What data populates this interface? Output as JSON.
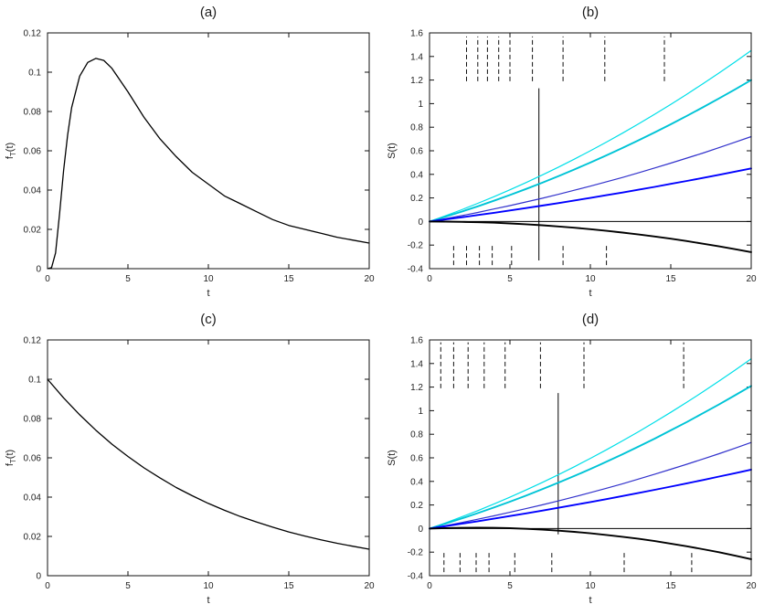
{
  "figure": {
    "background": "#ffffff"
  },
  "chart_data": [
    {
      "id": "a",
      "type": "line",
      "title": "(a)",
      "xlabel": "t",
      "ylabel": "f_T(t)",
      "xlim": [
        0,
        20
      ],
      "ylim": [
        0,
        0.12
      ],
      "xticks": [
        0,
        5,
        10,
        15,
        20
      ],
      "xtick_labels": [
        "0",
        "5",
        "10",
        "15",
        "20"
      ],
      "yticks": [
        0,
        0.02,
        0.04,
        0.06,
        0.08,
        0.1,
        0.12
      ],
      "ytick_labels": [
        "0",
        "0.02",
        "0.04",
        "0.06",
        "0.08",
        "0.1",
        "0.12"
      ],
      "series": [
        {
          "name": "lognormal-density",
          "color": "#000000",
          "width": 1.3,
          "x": [
            0,
            0.25,
            0.5,
            0.75,
            1,
            1.25,
            1.5,
            2,
            2.5,
            3,
            3.5,
            4,
            4.5,
            5,
            6,
            7,
            8,
            9,
            10,
            11,
            12,
            13,
            14,
            15,
            16,
            17,
            18,
            19,
            20
          ],
          "y": [
            0,
            0.0005,
            0.008,
            0.028,
            0.05,
            0.068,
            0.082,
            0.098,
            0.105,
            0.107,
            0.106,
            0.102,
            0.096,
            0.09,
            0.077,
            0.066,
            0.057,
            0.049,
            0.043,
            0.037,
            0.033,
            0.029,
            0.025,
            0.022,
            0.02,
            0.018,
            0.016,
            0.0145,
            0.013
          ]
        }
      ]
    },
    {
      "id": "b",
      "type": "line",
      "title": "(b)",
      "xlabel": "t",
      "ylabel": "S(t)",
      "xlim": [
        0,
        20
      ],
      "ylim": [
        -0.4,
        1.6
      ],
      "xticks": [
        0,
        5,
        10,
        15,
        20
      ],
      "xtick_labels": [
        "0",
        "5",
        "10",
        "15",
        "20"
      ],
      "yticks": [
        -0.4,
        -0.2,
        0,
        0.2,
        0.4,
        0.6,
        0.8,
        1,
        1.2,
        1.4,
        1.6
      ],
      "ytick_labels": [
        "-0.4",
        "-0.2",
        "0",
        "0.2",
        "0.4",
        "0.6",
        "0.8",
        "1",
        "1.2",
        "1.4",
        "1.6"
      ],
      "t": [
        0,
        1,
        2,
        3,
        4,
        5,
        6,
        7,
        8,
        9,
        10,
        11,
        12,
        13,
        14,
        15,
        16,
        17,
        18,
        19,
        20
      ],
      "series": [
        {
          "name": "score-cyan-upper",
          "color": "#00dfe8",
          "width": 1.2,
          "y": [
            0,
            0.049,
            0.1,
            0.154,
            0.21,
            0.269,
            0.33,
            0.394,
            0.46,
            0.529,
            0.6,
            0.674,
            0.75,
            0.829,
            0.91,
            0.994,
            1.08,
            1.169,
            1.26,
            1.354,
            1.45
          ]
        },
        {
          "name": "score-cyan-lower",
          "color": "#00c4d6",
          "width": 1.9,
          "y": [
            0,
            0.041,
            0.084,
            0.129,
            0.176,
            0.225,
            0.276,
            0.329,
            0.384,
            0.441,
            0.5,
            0.561,
            0.624,
            0.689,
            0.756,
            0.825,
            0.896,
            0.969,
            1.044,
            1.121,
            1.2
          ]
        },
        {
          "name": "score-blue-upper",
          "color": "#3333cc",
          "width": 1.2,
          "y": [
            0,
            0.025,
            0.05,
            0.077,
            0.106,
            0.135,
            0.166,
            0.197,
            0.23,
            0.265,
            0.3,
            0.337,
            0.374,
            0.413,
            0.454,
            0.495,
            0.538,
            0.581,
            0.626,
            0.673,
            0.72
          ]
        },
        {
          "name": "score-blue-lower",
          "color": "#0000ff",
          "width": 1.9,
          "y": [
            0,
            0.018,
            0.036,
            0.055,
            0.074,
            0.094,
            0.114,
            0.135,
            0.156,
            0.178,
            0.2,
            0.223,
            0.246,
            0.27,
            0.294,
            0.319,
            0.344,
            0.37,
            0.396,
            0.423,
            0.45
          ]
        },
        {
          "name": "zero-line",
          "color": "#000000",
          "width": 1.0,
          "x": [
            0,
            20
          ],
          "y": [
            0,
            0
          ]
        },
        {
          "name": "score-black-declining",
          "color": "#000000",
          "width": 1.9,
          "y": [
            0,
            -0.001,
            -0.003,
            -0.006,
            -0.01,
            -0.016,
            -0.023,
            -0.032,
            -0.042,
            -0.053,
            -0.065,
            -0.079,
            -0.094,
            -0.11,
            -0.127,
            -0.146,
            -0.166,
            -0.188,
            -0.211,
            -0.235,
            -0.26
          ]
        }
      ],
      "marks": [
        {
          "name": "event-marks-top",
          "t": [
            2.3,
            3.0,
            3.6,
            4.3,
            5.0,
            6.4,
            8.3,
            10.9,
            14.6
          ],
          "y0": 1.19,
          "y1": 1.57,
          "dash": "5,3"
        },
        {
          "name": "event-marks-bottom",
          "t": [
            1.5,
            2.3,
            3.1,
            3.9,
            5.1,
            8.3,
            11.0
          ],
          "y0": -0.37,
          "y1": -0.19,
          "dash": "5,3"
        }
      ],
      "vline": {
        "t": 6.8,
        "y0": -0.33,
        "y1": 1.13,
        "color": "#000000",
        "width": 1
      }
    },
    {
      "id": "c",
      "type": "line",
      "title": "(c)",
      "xlabel": "t",
      "ylabel": "f_T(t)",
      "xlim": [
        0,
        20
      ],
      "ylim": [
        0,
        0.12
      ],
      "xticks": [
        0,
        5,
        10,
        15,
        20
      ],
      "xtick_labels": [
        "0",
        "5",
        "10",
        "15",
        "20"
      ],
      "yticks": [
        0,
        0.02,
        0.04,
        0.06,
        0.08,
        0.1,
        0.12
      ],
      "ytick_labels": [
        "0",
        "0.02",
        "0.04",
        "0.06",
        "0.08",
        "0.1",
        "0.12"
      ],
      "series": [
        {
          "name": "exponential-density",
          "color": "#000000",
          "width": 1.3,
          "x": [
            0,
            1,
            2,
            3,
            4,
            5,
            6,
            7,
            8,
            9,
            10,
            11,
            12,
            13,
            14,
            15,
            16,
            17,
            18,
            19,
            20
          ],
          "y": [
            0.1,
            0.0905,
            0.0819,
            0.0741,
            0.067,
            0.0607,
            0.0549,
            0.0497,
            0.0449,
            0.0407,
            0.0368,
            0.0333,
            0.0301,
            0.0273,
            0.0247,
            0.0223,
            0.0202,
            0.0183,
            0.0165,
            0.015,
            0.0135
          ]
        }
      ]
    },
    {
      "id": "d",
      "type": "line",
      "title": "(d)",
      "xlabel": "t",
      "ylabel": "S(t)",
      "xlim": [
        0,
        20
      ],
      "ylim": [
        -0.4,
        1.6
      ],
      "xticks": [
        0,
        5,
        10,
        15,
        20
      ],
      "xtick_labels": [
        "0",
        "5",
        "10",
        "15",
        "20"
      ],
      "yticks": [
        -0.4,
        -0.2,
        0,
        0.2,
        0.4,
        0.6,
        0.8,
        1,
        1.2,
        1.4,
        1.6
      ],
      "ytick_labels": [
        "-0.4",
        "-0.2",
        "0",
        "0.2",
        "0.4",
        "0.6",
        "0.8",
        "1",
        "1.2",
        "1.4",
        "1.6"
      ],
      "t": [
        0,
        1,
        2,
        3,
        4,
        5,
        6,
        7,
        8,
        9,
        10,
        11,
        12,
        13,
        14,
        15,
        16,
        17,
        18,
        19,
        20
      ],
      "series": [
        {
          "name": "score-cyan-upper",
          "color": "#00dfe8",
          "width": 1.2,
          "y": [
            0,
            0.048,
            0.099,
            0.152,
            0.208,
            0.266,
            0.327,
            0.39,
            0.456,
            0.524,
            0.595,
            0.668,
            0.744,
            0.822,
            0.903,
            0.986,
            1.072,
            1.16,
            1.251,
            1.344,
            1.44
          ]
        },
        {
          "name": "score-cyan-lower",
          "color": "#00c4d6",
          "width": 1.9,
          "y": [
            0,
            0.042,
            0.085,
            0.131,
            0.178,
            0.228,
            0.279,
            0.333,
            0.388,
            0.446,
            0.505,
            0.567,
            0.63,
            0.696,
            0.763,
            0.833,
            0.904,
            0.978,
            1.053,
            1.131,
            1.21
          ]
        },
        {
          "name": "score-blue-upper",
          "color": "#3333cc",
          "width": 1.2,
          "y": [
            0,
            0.025,
            0.051,
            0.079,
            0.108,
            0.138,
            0.169,
            0.201,
            0.234,
            0.269,
            0.305,
            0.342,
            0.38,
            0.42,
            0.461,
            0.503,
            0.546,
            0.59,
            0.635,
            0.682,
            0.73
          ]
        },
        {
          "name": "score-blue-lower",
          "color": "#0000ff",
          "width": 1.9,
          "y": [
            0,
            0.02,
            0.041,
            0.062,
            0.084,
            0.106,
            0.129,
            0.152,
            0.176,
            0.2,
            0.225,
            0.25,
            0.276,
            0.302,
            0.329,
            0.356,
            0.384,
            0.412,
            0.441,
            0.47,
            0.5
          ]
        },
        {
          "name": "zero-line",
          "color": "#000000",
          "width": 1.0,
          "x": [
            0,
            20
          ],
          "y": [
            0,
            0
          ]
        },
        {
          "name": "score-black-declining",
          "color": "#000000",
          "width": 1.9,
          "y": [
            0,
            0.004,
            0.006,
            0.007,
            0.006,
            0.003,
            -0.002,
            -0.009,
            -0.018,
            -0.028,
            -0.04,
            -0.054,
            -0.07,
            -0.087,
            -0.106,
            -0.128,
            -0.15,
            -0.175,
            -0.201,
            -0.23,
            -0.26
          ]
        }
      ],
      "marks": [
        {
          "name": "event-marks-top",
          "t": [
            0.7,
            1.5,
            2.4,
            3.4,
            4.7,
            6.9,
            9.6,
            15.8
          ],
          "y0": 1.19,
          "y1": 1.58,
          "dash": "5,3"
        },
        {
          "name": "event-marks-bottom",
          "t": [
            0.9,
            1.9,
            2.9,
            3.7,
            5.3,
            7.6,
            12.1,
            16.3
          ],
          "y0": -0.37,
          "y1": -0.2,
          "dash": "5,3"
        }
      ],
      "vline": {
        "t": 8.0,
        "y0": -0.05,
        "y1": 1.15,
        "color": "#000000",
        "width": 1
      }
    }
  ]
}
